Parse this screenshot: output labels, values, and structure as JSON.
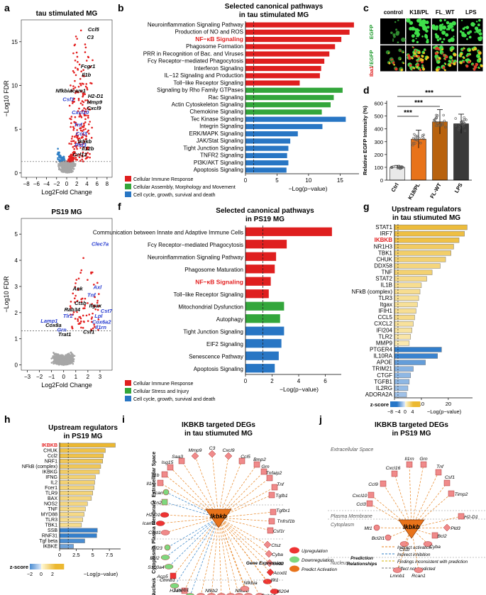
{
  "panel_letters": [
    "a",
    "b",
    "c",
    "d",
    "e",
    "f",
    "g",
    "h",
    "i",
    "j"
  ],
  "colors": {
    "red": "#e32020",
    "blue": "#2f7fc6",
    "grey": "#a6a6a6",
    "bar_red": "#df1f1f",
    "bar_green": "#33a63b",
    "bar_blue": "#2876c4",
    "gold": "#ecb830",
    "orange": "#e8731a",
    "upreg": "#f08a8a"
  },
  "chart_data": [
    {
      "id": "a",
      "type": "scatter",
      "title": "tau stimulated MG",
      "xlabel": "Log2Fold Change",
      "ylabel": "−Log10 FDR",
      "xticks": [
        -8,
        -6,
        -4,
        -2,
        0,
        2,
        4,
        6,
        8
      ],
      "yticks": [
        0,
        5,
        10,
        15
      ],
      "xlim": [
        -9,
        9
      ],
      "ylim": [
        -0.5,
        17.5
      ],
      "threshold_y": 1.3,
      "labels_black": [
        {
          "t": "Ccl5",
          "x": 4.2,
          "y": 16.2
        },
        {
          "t": "C3",
          "x": 4.0,
          "y": 15.3
        },
        {
          "t": "Fcgr1",
          "x": 2.8,
          "y": 12.0
        },
        {
          "t": "Il1b",
          "x": 3.0,
          "y": 11.0
        },
        {
          "t": "Nfkbia",
          "x": -2.2,
          "y": 9.2
        },
        {
          "t": "Icam1",
          "x": 0.8,
          "y": 9.2
        },
        {
          "t": "H2-D1",
          "x": 4.2,
          "y": 8.6
        },
        {
          "t": "Mmp9",
          "x": 4.0,
          "y": 7.9
        },
        {
          "t": "Cxcl9",
          "x": 4.0,
          "y": 7.2
        },
        {
          "t": "Ikbkb",
          "x": 2.2,
          "y": 3.4
        },
        {
          "t": "Il12b",
          "x": 3.0,
          "y": 2.6
        },
        {
          "t": "Ccl12",
          "x": 1.2,
          "y": 1.9
        }
      ],
      "labels_blue": [
        {
          "t": "Csf1",
          "x": -0.8,
          "y": 8.2
        },
        {
          "t": "Cxcl10",
          "x": 1.0,
          "y": 6.7
        },
        {
          "t": "Tnf",
          "x": 1.4,
          "y": 5.3
        },
        {
          "t": "Ccl3",
          "x": 1.8,
          "y": 4.3
        },
        {
          "t": "Ptd3",
          "x": 1.6,
          "y": 3.0
        }
      ]
    },
    {
      "id": "b",
      "type": "bar",
      "orientation": "horizontal",
      "title": "Selected canonical pathways in tau stimulated MG",
      "xlabel": "−Log(p−value)",
      "xticks": [
        0,
        5,
        10,
        15
      ],
      "xlim": [
        0,
        18
      ],
      "threshold": 1.3,
      "categories": [
        "Neuroinflammation Signaling Pathway",
        "Production of NO and ROS",
        "NF−κB Signaling",
        "Phagosome Formation",
        "PRR in Recognition of Bac. and Viruses",
        "Fcγ Receptor−mediated Phagocytosis",
        "Interferon Signaling",
        "IL−12 Signaling and Production",
        "Toll−like Receptor Signaling",
        "Signaling by Rho Family GTPases",
        "Rac Signaling",
        "Actin Cytoskeleton Signaling",
        "Chemokine Signaling",
        "Tec Kinase Signaling",
        "Integrin Signaling",
        "ERK/MAPK Signaling",
        "JAK/Stat Signaling",
        "Tight Junction Signaling",
        "TNFR2 Signaling",
        "PI3K/AKT Signaling",
        "Apoptosis Signaling"
      ],
      "values": [
        17.2,
        16.5,
        15.2,
        14.2,
        13.3,
        12.5,
        12.0,
        11.8,
        8.6,
        15.4,
        14.0,
        13.5,
        12.1,
        15.9,
        12.2,
        8.3,
        7.1,
        6.8,
        6.6,
        6.8,
        6.5
      ],
      "groups": [
        "r",
        "r",
        "r",
        "r",
        "r",
        "r",
        "r",
        "r",
        "r",
        "g",
        "g",
        "g",
        "g",
        "b",
        "b",
        "b",
        "b",
        "b",
        "b",
        "b",
        "b"
      ],
      "highlight_index": 2,
      "legend": [
        "Cellular Immune Response",
        "Cellular Assembly, Morphology and Movement",
        "Cell cycle, growth, survival and death"
      ]
    },
    {
      "id": "d",
      "type": "bar",
      "ylabel": "Relative EGFP Intensity (%)",
      "categories": [
        "Ctrl",
        "K18/PL",
        "FL-WT",
        "LPS"
      ],
      "values": [
        100,
        320,
        455,
        440
      ],
      "errors": [
        15,
        70,
        95,
        75
      ],
      "colors": [
        "#e9e9e9",
        "#e8731a",
        "#b8620e",
        "#3a3a3a"
      ],
      "yticks": [
        0,
        100,
        200,
        300,
        400,
        500,
        600
      ],
      "ylim": [
        0,
        620
      ],
      "significance": [
        "***",
        "***",
        "***"
      ]
    },
    {
      "id": "e",
      "type": "scatter",
      "title": "PS19 MG",
      "xlabel": "Log2Fold Change",
      "ylabel": "−Log10 FDR",
      "xticks": [
        -3,
        -2,
        -1,
        0,
        1,
        2,
        3
      ],
      "yticks": [
        0,
        1,
        2,
        3,
        4,
        5
      ],
      "xlim": [
        -3.5,
        4.0
      ],
      "ylim": [
        -0.2,
        5.6
      ],
      "threshold_y": 1.3,
      "labels_black": [
        {
          "t": "Ank",
          "x": 0.75,
          "y": 2.85
        },
        {
          "t": "Ctsb",
          "x": 0.9,
          "y": 2.3
        },
        {
          "t": "Itgax",
          "x": 2.1,
          "y": 2.2
        },
        {
          "t": "Rab34",
          "x": 0.05,
          "y": 2.05
        },
        {
          "t": "Cox8a",
          "x": -1.5,
          "y": 1.45
        },
        {
          "t": "Trat1",
          "x": -0.45,
          "y": 1.1
        },
        {
          "t": "Csf1",
          "x": 1.6,
          "y": 1.2
        }
      ],
      "labels_blue": [
        {
          "t": "Clec7a",
          "x": 2.3,
          "y": 4.55
        },
        {
          "t": "Axl",
          "x": 2.45,
          "y": 2.9
        },
        {
          "t": "Tnf",
          "x": 1.95,
          "y": 2.6
        },
        {
          "t": "Cst7",
          "x": 3.05,
          "y": 2.0
        },
        {
          "t": "Tlr2",
          "x": -0.05,
          "y": 1.8
        },
        {
          "t": "Lpl",
          "x": 2.55,
          "y": 1.8
        },
        {
          "t": "Lamp1",
          "x": -1.9,
          "y": 1.62
        },
        {
          "t": "Cox6a2",
          "x": 2.35,
          "y": 1.57
        },
        {
          "t": "Il1rn",
          "x": 2.6,
          "y": 1.37
        },
        {
          "t": "Grn",
          "x": -0.55,
          "y": 1.28
        }
      ]
    },
    {
      "id": "f",
      "type": "bar",
      "orientation": "horizontal",
      "title": "Selected canonical pathways in PS19 MG",
      "xlabel": "−Log(p−value)",
      "xticks": [
        0,
        2,
        4,
        6
      ],
      "xlim": [
        0,
        7.2
      ],
      "threshold": 1.3,
      "categories": [
        "Communication between Innate and Adaptive Immune Cells",
        "Fcγ Receptor−mediated Phagocytosis",
        "Neuroinflammation Signaling Pathway",
        "Phagosome Maturation",
        "NF−κB Signaling",
        "Toll−like Receptor Signaling",
        "Mitochondrial Dysfunction",
        "Autophagy",
        "Tight Junction Signaling",
        "EIF2 Signaling",
        "Senescence Pathway",
        "Apoptosis Signaling"
      ],
      "values": [
        6.5,
        3.1,
        2.3,
        2.2,
        1.9,
        1.75,
        2.9,
        2.6,
        2.9,
        2.7,
        2.5,
        2.2
      ],
      "groups": [
        "r",
        "r",
        "r",
        "r",
        "r",
        "r",
        "g",
        "g",
        "b",
        "b",
        "b",
        "b"
      ],
      "highlight_index": 4,
      "legend": [
        "Cellular Immune Response",
        "Cellular Stress and Injury",
        "Cell cycle, growth, survival and death"
      ]
    },
    {
      "id": "g",
      "type": "bar",
      "orientation": "horizontal",
      "title": "Upstream regulators in tau stiumuted MG",
      "xlabel": "−Log(p−value)",
      "xticks": [
        0,
        10,
        20
      ],
      "xlim": [
        0,
        29
      ],
      "threshold": 1.3,
      "categories": [
        "STAT1",
        "IRF7",
        "IKBKB",
        "NR1H3",
        "TBK1",
        "CHUK",
        "DDX58",
        "TNF",
        "STAT2",
        "IL1B",
        "NFkB (complex)",
        "TLR3",
        "Itgax",
        "IFIH1",
        "CCL5",
        "CXCL2",
        "IFI204",
        "TLR2",
        "MMP9",
        "PTGER4",
        "IL10RA",
        "APOE",
        "TRIM21",
        "CTGF",
        "TGFB1",
        "IL2RG",
        "ADORA2A"
      ],
      "values": [
        27,
        26,
        24,
        22,
        21,
        19,
        17,
        14,
        12,
        10,
        9.5,
        9,
        8.5,
        8,
        7.5,
        7,
        6.5,
        6,
        5.5,
        17.5,
        16,
        11.5,
        7,
        6,
        5.5,
        5,
        4.5
      ],
      "zscores": [
        4.2,
        4.0,
        3.9,
        3.2,
        3.0,
        2.8,
        2.5,
        2.8,
        2.2,
        2.0,
        2.0,
        1.8,
        1.8,
        1.9,
        2.2,
        1.7,
        1.6,
        1.4,
        1.2,
        -4.2,
        -4.0,
        -3.0,
        -2.2,
        -2.0,
        -2.0,
        -1.8,
        -1.6
      ],
      "highlight_index": 2,
      "colorbar": {
        "label": "z-score",
        "ticks": [
          -8,
          -4,
          0,
          4
        ]
      }
    },
    {
      "id": "h",
      "type": "bar",
      "orientation": "horizontal",
      "title": "Upstream regulators in PS19 MG",
      "xlabel": "−Log(p−value)",
      "xticks": [
        0,
        2.5,
        5.0,
        7.5
      ],
      "xlim": [
        0,
        9.2
      ],
      "threshold": 1.3,
      "categories": [
        "IKBKB",
        "CHUK",
        "Ccl2",
        "NRF1",
        "NFkB (complex)",
        "IKBKG",
        "IFNG",
        "IL2",
        "Fcer1",
        "TLR9",
        "BAX",
        "NOS2",
        "TNF",
        "MYD88",
        "TLR3",
        "TBK1",
        "SSB",
        "RNF31",
        "Tgf beta",
        "IKBKE"
      ],
      "values": [
        8.4,
        6.9,
        6.6,
        6.5,
        6.2,
        6.0,
        5.4,
        5.3,
        5.2,
        5.0,
        4.8,
        4.2,
        3.9,
        3.7,
        3.5,
        3.3,
        5.7,
        5.6,
        3.8,
        2.1
      ],
      "zscores": [
        2.6,
        2.2,
        2.2,
        2.0,
        2.0,
        1.8,
        1.6,
        1.6,
        1.5,
        1.5,
        1.4,
        1.4,
        1.3,
        1.3,
        1.2,
        1.2,
        -2.4,
        -2.4,
        -2.1,
        -1.6
      ],
      "highlight_index": 0,
      "colorbar": {
        "label": "z-score",
        "ticks": [
          -2,
          0,
          2
        ]
      }
    },
    {
      "id": "i",
      "type": "table",
      "title": "IKBKB targeted DEGs in tau stiumuted MG",
      "hub": "Ikbkb",
      "regions": [
        "Extracellular Space",
        "Plasma Membrane",
        "Cytoplasma",
        "Nucleus"
      ],
      "extracellular": [
        "Mmp9",
        "C3",
        "Cxcl9",
        "Saa3",
        "Ccl5",
        "Bmp2",
        "Isg15",
        "Grn",
        "Il1b",
        "Tnfaip2",
        "Il1rn",
        "Tnf",
        "Vcan",
        "Tgfb1",
        "Ccn2"
      ],
      "plasma_membrane": [
        "H2-D1",
        "Tgfbr1",
        "Icam1",
        "Tnfrsf1b",
        "Cald1",
        "Csf1r"
      ],
      "cytoplasma": [
        "Kif23",
        "Ctsz",
        "Bcl2",
        "Cyba",
        "S100a4",
        "Sod2",
        "Acp5",
        "Acod1"
      ],
      "nucleus": [
        "Ctnnb1",
        "H2afx",
        "Ifit1",
        "Lmnb1",
        "Ifi204",
        "Cebpd",
        "Cebpb",
        "Nfkb1",
        "Nfkb2",
        "Rel",
        "Relb",
        "Nfkbib",
        "Nfkbia"
      ],
      "legend_gene_expression_title": "Gene Expression",
      "legend_gene_expression": [
        "Upregulation",
        "Downregulation",
        "Predict Activation"
      ],
      "legend_prediction_title": "Prediction Relationships",
      "legend_prediction": [
        "Indirect activation",
        "Indirect inhibition",
        "Findings inconsistent with prediction",
        "Effect not predicted"
      ]
    },
    {
      "id": "j",
      "type": "table",
      "title": "IKBKB targeted DEGs in PS19 MG",
      "hub": "Ikbkb",
      "regions": [
        "Extracellular Space",
        "Plasma Membrane",
        "Cytoplasm",
        "Nucleus"
      ],
      "extracellular": [
        "Il1rn",
        "Grn",
        "Cxcl16",
        "Tnf",
        "Ccl9",
        "Csf1",
        "Cxcl10",
        "Timp2",
        "Ccl3"
      ],
      "plasma_membrane": [
        "H2-D1"
      ],
      "cytoplasm": [
        "Mt1",
        "Pld3",
        "Bcl2l1",
        "Bcl2",
        "Ctsb",
        "Cyba"
      ],
      "nucleus": [
        "Lmnb1",
        "Rcan1"
      ]
    }
  ],
  "panel_c": {
    "columns": [
      "control",
      "K18/PL",
      "FL_WT",
      "LPS"
    ],
    "row_labels": [
      "EGFP",
      "Iba1",
      "EGFP"
    ],
    "row_label_separator": "/"
  }
}
